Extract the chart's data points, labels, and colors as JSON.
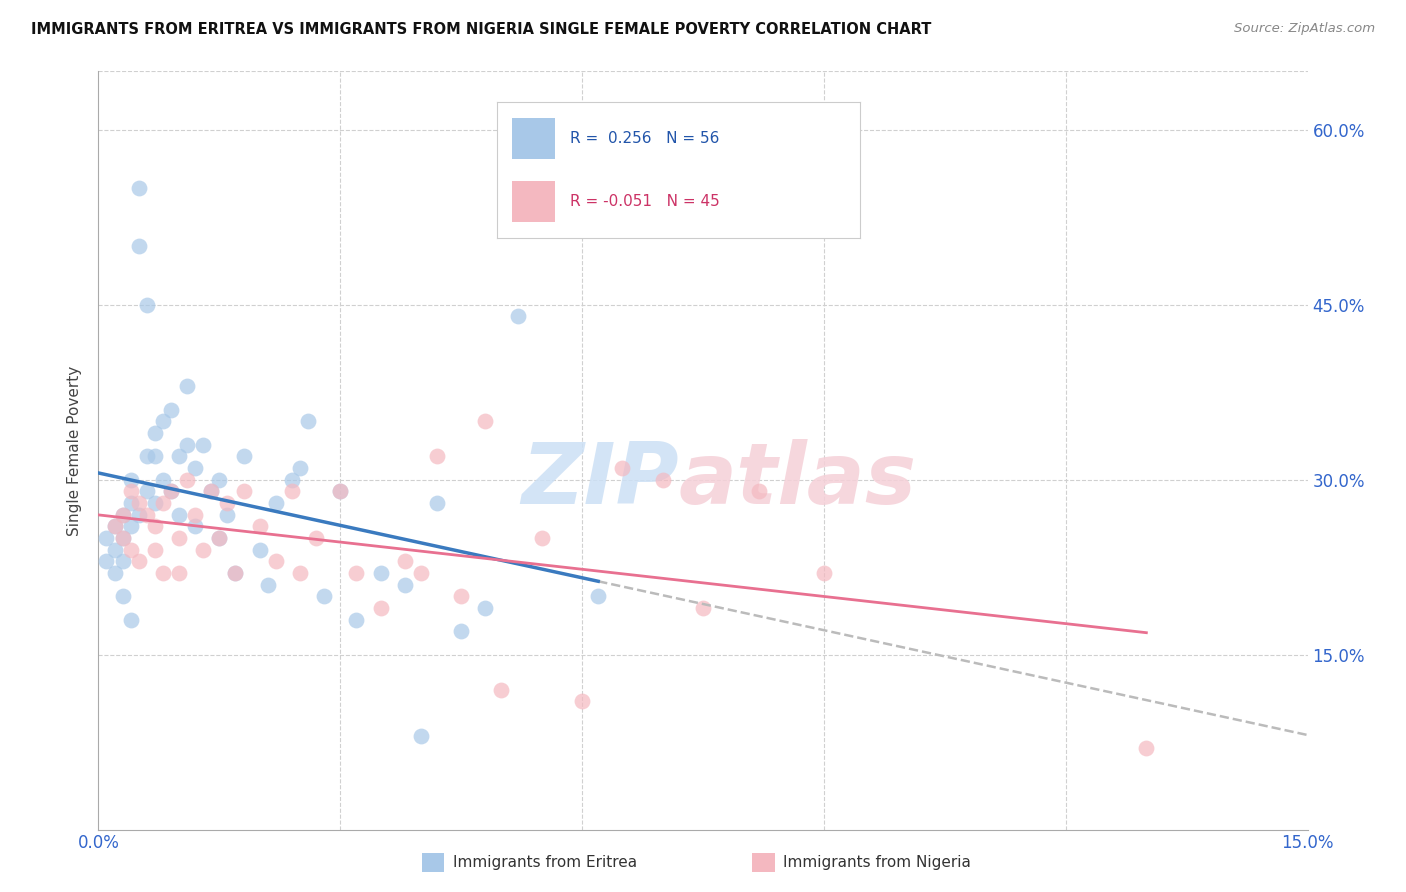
{
  "title": "IMMIGRANTS FROM ERITREA VS IMMIGRANTS FROM NIGERIA SINGLE FEMALE POVERTY CORRELATION CHART",
  "source": "Source: ZipAtlas.com",
  "ylabel": "Single Female Poverty",
  "xlim": [
    0.0,
    0.15
  ],
  "ylim": [
    0.0,
    0.65
  ],
  "eritrea_color": "#a8c8e8",
  "nigeria_color": "#f4b8c0",
  "eritrea_line_color": "#3a7abf",
  "nigeria_line_color": "#e87090",
  "dashed_line_color": "#bbbbbb",
  "eritrea_x": [
    0.001,
    0.001,
    0.002,
    0.002,
    0.002,
    0.003,
    0.003,
    0.003,
    0.003,
    0.004,
    0.004,
    0.004,
    0.004,
    0.005,
    0.005,
    0.005,
    0.006,
    0.006,
    0.006,
    0.007,
    0.007,
    0.007,
    0.008,
    0.008,
    0.009,
    0.009,
    0.01,
    0.01,
    0.011,
    0.011,
    0.012,
    0.012,
    0.013,
    0.014,
    0.015,
    0.015,
    0.016,
    0.017,
    0.018,
    0.02,
    0.021,
    0.022,
    0.024,
    0.025,
    0.026,
    0.028,
    0.03,
    0.032,
    0.035,
    0.038,
    0.04,
    0.042,
    0.045,
    0.048,
    0.052,
    0.062
  ],
  "eritrea_y": [
    0.25,
    0.23,
    0.26,
    0.24,
    0.22,
    0.27,
    0.25,
    0.23,
    0.2,
    0.3,
    0.28,
    0.26,
    0.18,
    0.55,
    0.5,
    0.27,
    0.45,
    0.32,
    0.29,
    0.34,
    0.32,
    0.28,
    0.35,
    0.3,
    0.36,
    0.29,
    0.32,
    0.27,
    0.38,
    0.33,
    0.31,
    0.26,
    0.33,
    0.29,
    0.3,
    0.25,
    0.27,
    0.22,
    0.32,
    0.24,
    0.21,
    0.28,
    0.3,
    0.31,
    0.35,
    0.2,
    0.29,
    0.18,
    0.22,
    0.21,
    0.08,
    0.28,
    0.17,
    0.19,
    0.44,
    0.2
  ],
  "nigeria_x": [
    0.002,
    0.003,
    0.003,
    0.004,
    0.004,
    0.005,
    0.005,
    0.006,
    0.007,
    0.007,
    0.008,
    0.008,
    0.009,
    0.01,
    0.01,
    0.011,
    0.012,
    0.013,
    0.014,
    0.015,
    0.016,
    0.017,
    0.018,
    0.02,
    0.022,
    0.024,
    0.025,
    0.027,
    0.03,
    0.032,
    0.035,
    0.038,
    0.04,
    0.042,
    0.045,
    0.048,
    0.05,
    0.055,
    0.06,
    0.065,
    0.07,
    0.075,
    0.082,
    0.09,
    0.13
  ],
  "nigeria_y": [
    0.26,
    0.27,
    0.25,
    0.29,
    0.24,
    0.28,
    0.23,
    0.27,
    0.26,
    0.24,
    0.28,
    0.22,
    0.29,
    0.25,
    0.22,
    0.3,
    0.27,
    0.24,
    0.29,
    0.25,
    0.28,
    0.22,
    0.29,
    0.26,
    0.23,
    0.29,
    0.22,
    0.25,
    0.29,
    0.22,
    0.19,
    0.23,
    0.22,
    0.32,
    0.2,
    0.35,
    0.12,
    0.25,
    0.11,
    0.31,
    0.3,
    0.19,
    0.29,
    0.22,
    0.07
  ]
}
